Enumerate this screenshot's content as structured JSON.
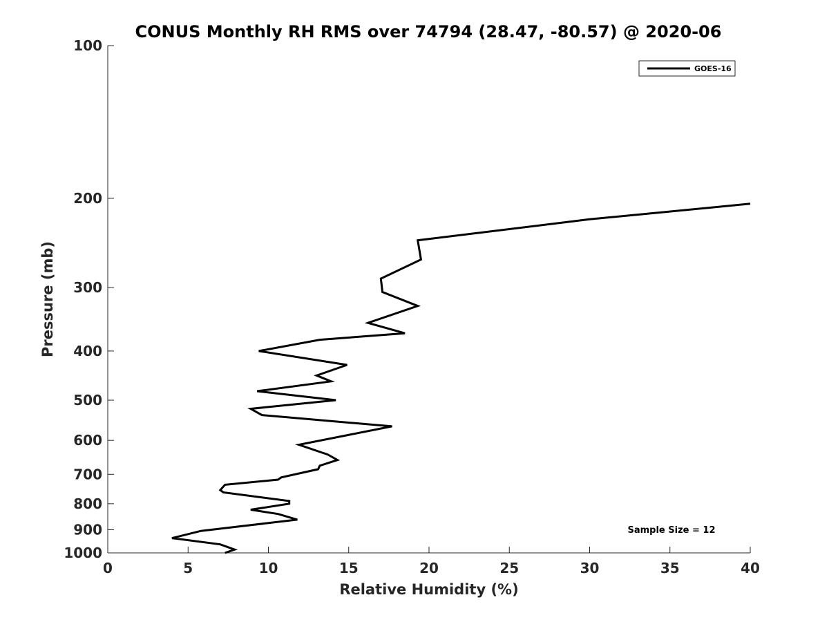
{
  "chart_data": {
    "type": "line",
    "title": "CONUS Monthly RH RMS over 74794 (28.47, -80.57) @ 2020-06",
    "xlabel": "Relative Humidity (%)",
    "ylabel": "Pressure (mb)",
    "xlim": [
      0,
      40
    ],
    "ylim": [
      100,
      1000
    ],
    "yscale": "log",
    "y_reversed": true,
    "grid": false,
    "legend_placement": "top-right",
    "xticks": [
      0,
      5,
      10,
      15,
      20,
      25,
      30,
      35,
      40
    ],
    "yticks": [
      100,
      200,
      300,
      400,
      500,
      600,
      700,
      800,
      900,
      1000
    ],
    "annotation": "Sample Size = 12",
    "series": [
      {
        "name": "GOES-16",
        "color": "#000000",
        "points": [
          [
            7.3,
            1000
          ],
          [
            7.9,
            985
          ],
          [
            7.0,
            962
          ],
          [
            4.0,
            935
          ],
          [
            5.8,
            905
          ],
          [
            11.8,
            860
          ],
          [
            10.6,
            838
          ],
          [
            8.9,
            822
          ],
          [
            11.3,
            800
          ],
          [
            11.3,
            790
          ],
          [
            7.2,
            760
          ],
          [
            7.0,
            752
          ],
          [
            7.3,
            734
          ],
          [
            10.6,
            717
          ],
          [
            10.8,
            710
          ],
          [
            13.1,
            684
          ],
          [
            13.2,
            673
          ],
          [
            14.3,
            656
          ],
          [
            13.7,
            640
          ],
          [
            11.9,
            612
          ],
          [
            17.7,
            563
          ],
          [
            9.6,
            535
          ],
          [
            8.9,
            520
          ],
          [
            14.2,
            500
          ],
          [
            9.3,
            480
          ],
          [
            13.9,
            459
          ],
          [
            13.0,
            447
          ],
          [
            14.9,
            426
          ],
          [
            9.4,
            400
          ],
          [
            13.2,
            380
          ],
          [
            18.5,
            369
          ],
          [
            16.2,
            352
          ],
          [
            19.3,
            326
          ],
          [
            17.1,
            306
          ],
          [
            17.0,
            288
          ],
          [
            19.5,
            264
          ],
          [
            19.3,
            242
          ],
          [
            30.0,
            220
          ],
          [
            40.0,
            205
          ]
        ]
      }
    ]
  }
}
